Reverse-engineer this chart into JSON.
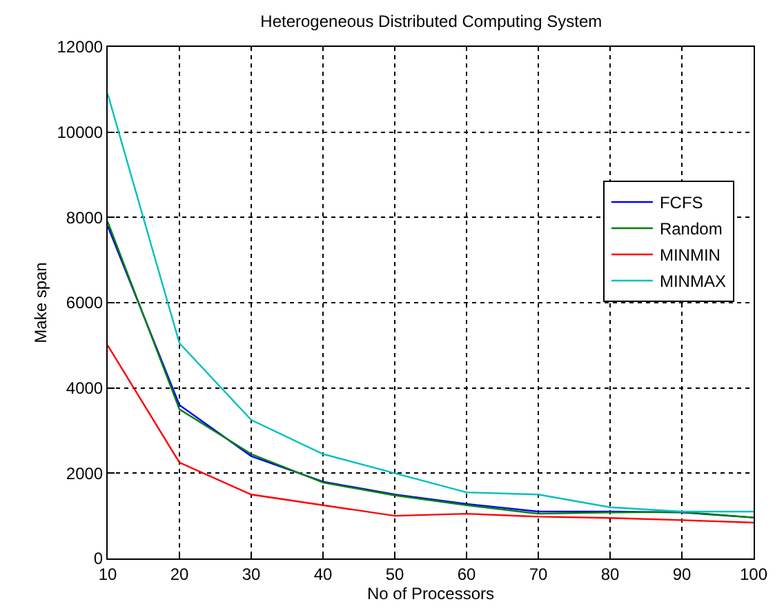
{
  "chart_data": {
    "type": "line",
    "title": "Heterogeneous Distributed Computing System",
    "xlabel": "No of Processors",
    "ylabel": "Make span",
    "x": [
      10,
      20,
      30,
      40,
      50,
      60,
      70,
      80,
      90,
      100
    ],
    "series": [
      {
        "name": "FCFS",
        "color": "#0000ff",
        "values": [
          7800,
          3600,
          2400,
          1800,
          1500,
          1280,
          1100,
          1100,
          1080,
          960
        ]
      },
      {
        "name": "Random",
        "color": "#008000",
        "values": [
          7900,
          3500,
          2450,
          1780,
          1480,
          1250,
          1050,
          1080,
          1090,
          960
        ]
      },
      {
        "name": "MINMIN",
        "color": "#ff0000",
        "values": [
          5000,
          2250,
          1500,
          1250,
          1000,
          1050,
          980,
          950,
          900,
          840
        ]
      },
      {
        "name": "MINMAX",
        "color": "#00bfbf",
        "values": [
          10900,
          5050,
          3250,
          2450,
          2000,
          1550,
          1500,
          1200,
          1100,
          1100
        ]
      }
    ],
    "xlim": [
      10,
      100
    ],
    "xticks": [
      10,
      20,
      30,
      40,
      50,
      60,
      70,
      80,
      90,
      100
    ],
    "ylim": [
      0,
      12000
    ],
    "yticks": [
      0,
      2000,
      4000,
      6000,
      8000,
      10000,
      12000
    ],
    "grid": true,
    "legend": "right",
    "line_style": "solid",
    "marker": "none"
  }
}
